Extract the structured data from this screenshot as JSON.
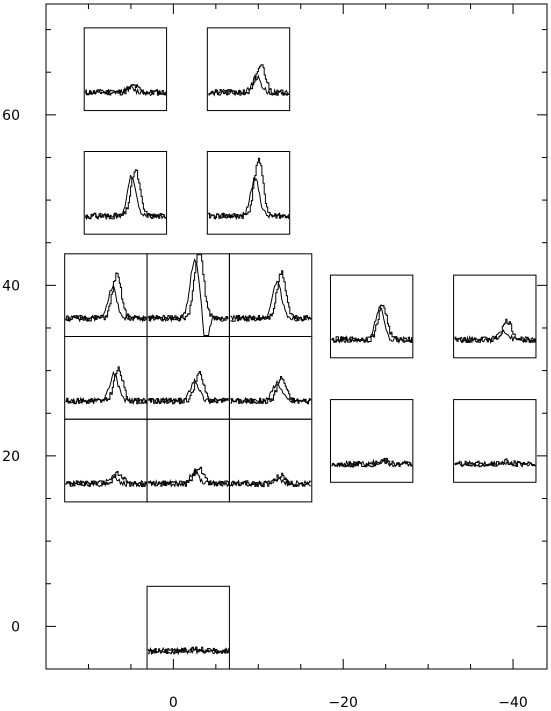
{
  "chart_data": {
    "type": "line",
    "title": "",
    "xlabel": "",
    "ylabel": "",
    "xlim": [
      15,
      -44
    ],
    "ylim": [
      -5,
      73
    ],
    "x_direction": "reversed",
    "xticks": [
      {
        "value": 0,
        "label": "0"
      },
      {
        "value": -20,
        "label": "−20"
      },
      {
        "value": -40,
        "label": "−40"
      }
    ],
    "yticks": [
      {
        "value": 0,
        "label": "0"
      },
      {
        "value": 20,
        "label": "20"
      },
      {
        "value": 40,
        "label": "40"
      },
      {
        "value": 60,
        "label": "60"
      }
    ],
    "minor_tick_step": 5,
    "grid": false,
    "legend": "none",
    "line_color": "#000000",
    "panels": [
      {
        "id": "p1",
        "x": [
          10.5,
          0.8
        ],
        "y": [
          60.5,
          70.2
        ],
        "series": [
          {
            "peak_pos": 0.6,
            "peak_amp": 0.08,
            "seed": 11
          },
          {
            "peak_pos": 0.55,
            "peak_amp": 0.05,
            "seed": 12
          }
        ]
      },
      {
        "id": "p2",
        "x": [
          -4.0,
          -13.7
        ],
        "y": [
          60.5,
          70.2
        ],
        "series": [
          {
            "peak_pos": 0.65,
            "peak_amp": 0.33,
            "seed": 21
          },
          {
            "peak_pos": 0.6,
            "peak_amp": 0.18,
            "seed": 22
          }
        ]
      },
      {
        "id": "p3",
        "x": [
          10.5,
          0.8
        ],
        "y": [
          46.0,
          55.7
        ],
        "series": [
          {
            "peak_pos": 0.62,
            "peak_amp": 0.55,
            "seed": 31
          },
          {
            "peak_pos": 0.58,
            "peak_amp": 0.48,
            "seed": 32
          }
        ]
      },
      {
        "id": "p4",
        "x": [
          -4.0,
          -13.7
        ],
        "y": [
          46.0,
          55.7
        ],
        "series": [
          {
            "peak_pos": 0.62,
            "peak_amp": 0.68,
            "seed": 41
          },
          {
            "peak_pos": 0.58,
            "peak_amp": 0.45,
            "seed": 42
          }
        ]
      },
      {
        "id": "p5",
        "x": [
          12.8,
          3.1
        ],
        "y": [
          34.0,
          43.7
        ],
        "series": [
          {
            "peak_pos": 0.63,
            "peak_amp": 0.52,
            "seed": 51
          },
          {
            "peak_pos": 0.58,
            "peak_amp": 0.38,
            "seed": 52
          }
        ]
      },
      {
        "id": "p6",
        "x": [
          3.1,
          -6.6
        ],
        "y": [
          34.0,
          43.7
        ],
        "series": [
          {
            "peak_pos": 0.63,
            "peak_amp": 0.86,
            "seed": 61
          },
          {
            "peak_pos": 0.58,
            "peak_amp": 0.72,
            "seed": 62,
            "dip": 0.45
          }
        ]
      },
      {
        "id": "p7",
        "x": [
          -6.6,
          -16.3
        ],
        "y": [
          34.0,
          43.7
        ],
        "series": [
          {
            "peak_pos": 0.63,
            "peak_amp": 0.55,
            "seed": 71
          },
          {
            "peak_pos": 0.58,
            "peak_amp": 0.45,
            "seed": 72
          }
        ]
      },
      {
        "id": "p8",
        "x": [
          12.8,
          3.1
        ],
        "y": [
          24.3,
          34.0
        ],
        "series": [
          {
            "peak_pos": 0.65,
            "peak_amp": 0.38,
            "seed": 81
          },
          {
            "peak_pos": 0.6,
            "peak_amp": 0.32,
            "seed": 82
          }
        ]
      },
      {
        "id": "p9",
        "x": [
          3.1,
          -6.6
        ],
        "y": [
          24.3,
          34.0
        ],
        "series": [
          {
            "peak_pos": 0.63,
            "peak_amp": 0.33,
            "seed": 91
          },
          {
            "peak_pos": 0.58,
            "peak_amp": 0.25,
            "seed": 92
          }
        ]
      },
      {
        "id": "p10",
        "x": [
          -6.6,
          -16.3
        ],
        "y": [
          24.3,
          34.0
        ],
        "series": [
          {
            "peak_pos": 0.63,
            "peak_amp": 0.28,
            "seed": 101
          },
          {
            "peak_pos": 0.58,
            "peak_amp": 0.22,
            "seed": 102
          }
        ]
      },
      {
        "id": "p11",
        "x": [
          12.8,
          3.1
        ],
        "y": [
          14.6,
          24.3
        ],
        "series": [
          {
            "peak_pos": 0.65,
            "peak_amp": 0.12,
            "seed": 111
          },
          {
            "peak_pos": 0.6,
            "peak_amp": 0.08,
            "seed": 112
          }
        ]
      },
      {
        "id": "p12",
        "x": [
          3.1,
          -6.6
        ],
        "y": [
          14.6,
          24.3
        ],
        "series": [
          {
            "peak_pos": 0.62,
            "peak_amp": 0.2,
            "seed": 121
          },
          {
            "peak_pos": 0.58,
            "peak_amp": 0.14,
            "seed": 122
          }
        ]
      },
      {
        "id": "p13",
        "x": [
          -6.6,
          -16.3
        ],
        "y": [
          14.6,
          24.3
        ],
        "series": [
          {
            "peak_pos": 0.62,
            "peak_amp": 0.1,
            "seed": 131
          },
          {
            "peak_pos": 0.58,
            "peak_amp": 0.06,
            "seed": 132
          }
        ]
      },
      {
        "id": "p14",
        "x": [
          -18.5,
          -28.2
        ],
        "y": [
          31.5,
          41.2
        ],
        "series": [
          {
            "peak_pos": 0.63,
            "peak_amp": 0.42,
            "seed": 141
          },
          {
            "peak_pos": 0.6,
            "peak_amp": 0.38,
            "seed": 142
          }
        ]
      },
      {
        "id": "p15",
        "x": [
          -33.0,
          -42.7
        ],
        "y": [
          31.5,
          41.2
        ],
        "series": [
          {
            "peak_pos": 0.65,
            "peak_amp": 0.22,
            "seed": 151
          },
          {
            "peak_pos": 0.6,
            "peak_amp": 0.12,
            "seed": 152
          }
        ]
      },
      {
        "id": "p16",
        "x": [
          -18.5,
          -28.2
        ],
        "y": [
          16.9,
          26.6
        ],
        "series": [
          {
            "peak_pos": 0.65,
            "peak_amp": 0.04,
            "seed": 161
          },
          {
            "peak_pos": 0.6,
            "peak_amp": 0.03,
            "seed": 162
          }
        ]
      },
      {
        "id": "p17",
        "x": [
          -33.0,
          -42.7
        ],
        "y": [
          16.9,
          26.6
        ],
        "series": [
          {
            "peak_pos": 0.65,
            "peak_amp": 0.03,
            "seed": 171
          },
          {
            "peak_pos": 0.6,
            "peak_amp": 0.02,
            "seed": 172
          }
        ]
      },
      {
        "id": "p18",
        "x": [
          3.1,
          -6.6
        ],
        "y": [
          -5.0,
          4.7
        ],
        "series": [
          {
            "peak_pos": 0.6,
            "peak_amp": 0.02,
            "seed": 181
          },
          {
            "peak_pos": 0.55,
            "peak_amp": 0.01,
            "seed": 182
          }
        ]
      }
    ]
  }
}
